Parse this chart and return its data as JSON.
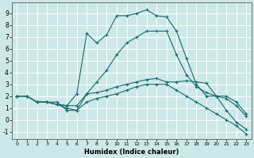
{
  "xlabel": "Humidex (Indice chaleur)",
  "bg_color": "#cce8e8",
  "grid_color": "#ffffff",
  "line_color": "#1a6b6b",
  "xlim": [
    -0.5,
    23.5
  ],
  "ylim": [
    -1.6,
    9.9
  ],
  "xticks": [
    0,
    1,
    2,
    3,
    4,
    5,
    6,
    7,
    8,
    9,
    10,
    11,
    12,
    13,
    14,
    15,
    16,
    17,
    18,
    19,
    20,
    21,
    22,
    23
  ],
  "yticks": [
    -1,
    0,
    1,
    2,
    3,
    4,
    5,
    6,
    7,
    8,
    9
  ],
  "lines": [
    {
      "x": [
        0,
        1,
        2,
        3,
        4,
        5,
        6,
        7,
        8,
        9,
        10,
        11,
        12,
        13,
        14,
        15,
        16,
        17,
        18,
        19,
        20,
        21,
        22,
        23
      ],
      "y": [
        2.0,
        2.0,
        1.5,
        1.5,
        1.3,
        1.2,
        2.2,
        7.3,
        6.5,
        7.2,
        8.8,
        8.8,
        9.0,
        9.3,
        8.8,
        8.7,
        7.5,
        5.2,
        3.0,
        2.0,
        2.0,
        2.0,
        1.5,
        0.5
      ]
    },
    {
      "x": [
        0,
        1,
        2,
        3,
        4,
        5,
        6,
        7,
        8,
        9,
        10,
        11,
        12,
        13,
        14,
        15,
        16,
        17,
        18,
        19,
        20,
        21,
        22,
        23
      ],
      "y": [
        2.0,
        2.0,
        1.5,
        1.5,
        1.3,
        1.2,
        1.2,
        2.2,
        3.2,
        4.2,
        5.5,
        6.5,
        7.0,
        7.5,
        7.5,
        7.5,
        5.5,
        3.8,
        2.8,
        2.3,
        2.0,
        1.8,
        1.2,
        0.3
      ]
    },
    {
      "x": [
        0,
        1,
        2,
        3,
        4,
        5,
        6,
        7,
        8,
        9,
        10,
        11,
        12,
        13,
        14,
        15,
        16,
        17,
        18,
        19,
        20,
        21,
        22,
        23
      ],
      "y": [
        2.0,
        2.0,
        1.5,
        1.5,
        1.5,
        0.8,
        0.8,
        2.2,
        2.3,
        2.5,
        2.8,
        3.0,
        3.2,
        3.4,
        3.5,
        3.2,
        3.2,
        3.3,
        3.2,
        3.1,
        2.0,
        0.8,
        -0.2,
        -0.8
      ]
    },
    {
      "x": [
        0,
        1,
        2,
        3,
        4,
        5,
        6,
        7,
        8,
        9,
        10,
        11,
        12,
        13,
        14,
        15,
        16,
        17,
        18,
        19,
        20,
        21,
        22,
        23
      ],
      "y": [
        2.0,
        2.0,
        1.5,
        1.5,
        1.3,
        1.0,
        0.8,
        1.5,
        1.8,
        2.0,
        2.2,
        2.5,
        2.8,
        3.0,
        3.0,
        3.0,
        2.5,
        2.0,
        1.5,
        1.0,
        0.5,
        0.0,
        -0.5,
        -1.2
      ]
    }
  ]
}
